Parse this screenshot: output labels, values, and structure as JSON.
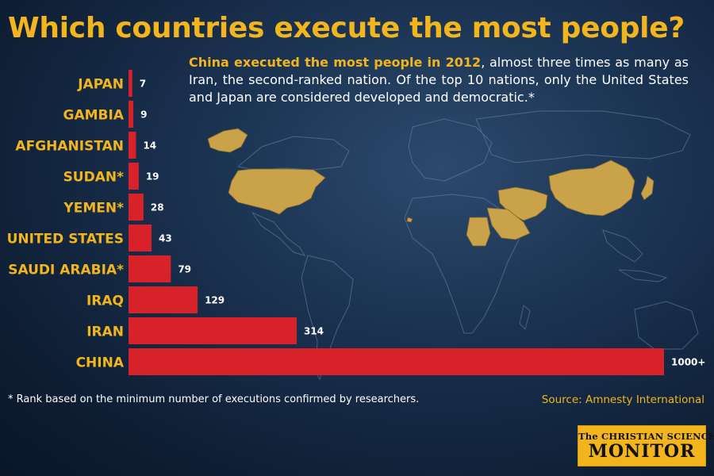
{
  "headline": "Which countries execute the most people?",
  "intro": {
    "lead": "China executed the most people in 2012",
    "body": ", almost three times as many as Iran, the second-ranked nation. Of the top 10 nations, only the United States and Japan are considered developed and democratic.*"
  },
  "chart_data": {
    "type": "bar",
    "orientation": "horizontal",
    "categories": [
      "JAPAN",
      "GAMBIA",
      "AFGHANISTAN",
      "SUDAN*",
      "YEMEN*",
      "UNITED STATES",
      "SAUDI ARABIA*",
      "IRAQ",
      "IRAN",
      "CHINA"
    ],
    "values": [
      7,
      9,
      14,
      19,
      28,
      43,
      79,
      129,
      314,
      1000
    ],
    "data_labels": [
      "7",
      "9",
      "14",
      "19",
      "28",
      "43",
      "79",
      "129",
      "314",
      "1000+"
    ],
    "title": "Which countries execute the most people?",
    "xlim": [
      0,
      1000
    ],
    "grid": false,
    "bar_color": "#d8222a",
    "label_color": "#f2b51e"
  },
  "footnote": "* Rank based on the minimum number of executions confirmed by researchers.",
  "source": "Source: Amnesty International",
  "logo": {
    "line1": "The CHRISTIAN SCIENCE",
    "line2": "MONITOR"
  },
  "colors": {
    "highlight": "#f2b51e",
    "bar": "#d8222a",
    "background": "#13263f"
  }
}
